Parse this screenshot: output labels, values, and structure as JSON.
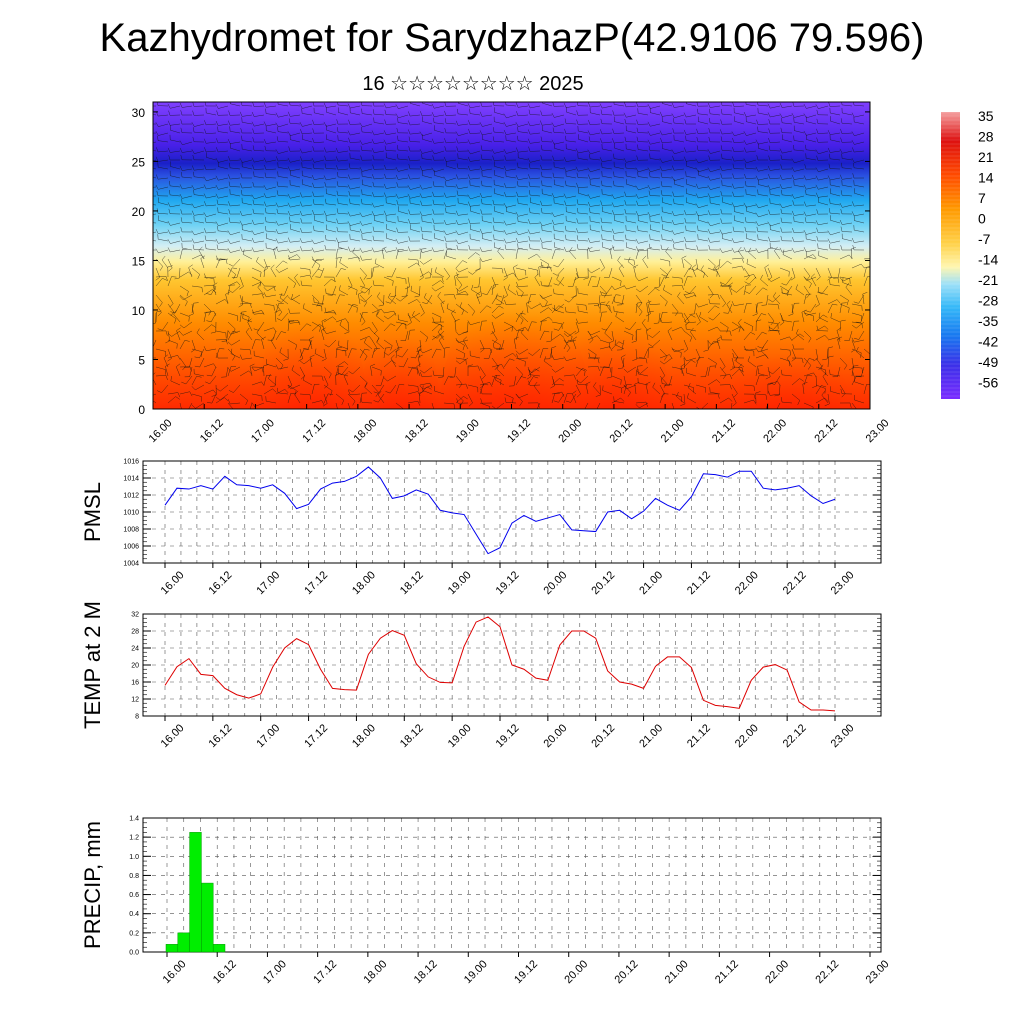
{
  "title": "Kazhydromet for SarydzhazP(42.9106 79.596)",
  "subtitle": "16 ☆☆☆☆☆☆☆☆ 2025",
  "chart_data": [
    {
      "type": "heatmap",
      "name": "cross-section",
      "yticks": [
        0,
        5,
        10,
        15,
        20,
        25,
        30
      ],
      "ylim": [
        0,
        31
      ],
      "xticks": [
        "16.00",
        "16.12",
        "17.00",
        "17.12",
        "18.00",
        "18.12",
        "19.00",
        "19.12",
        "20.00",
        "20.12",
        "21.00",
        "21.12",
        "22.00",
        "22.12",
        "23.00"
      ],
      "colorbar": {
        "labels": [
          "35",
          "28",
          "21",
          "14",
          "7",
          "0",
          "-7",
          "-14",
          "-21",
          "-28",
          "-35",
          "-42",
          "-49",
          "-56"
        ],
        "range": [
          -60,
          38
        ]
      }
    },
    {
      "type": "line",
      "ylabel": "PMSL",
      "ylim": [
        1004,
        1016
      ],
      "yticks": [
        "1016",
        "1014",
        "1012",
        "1010",
        "1008",
        "1006",
        "1004"
      ],
      "xticks": [
        "16.00",
        "16.12",
        "17.00",
        "17.12",
        "18.00",
        "18.12",
        "19.00",
        "19.12",
        "20.00",
        "20.12",
        "21.00",
        "21.12",
        "22.00",
        "22.12",
        "23.00"
      ],
      "color": "#0000ee",
      "values": [
        1010.8,
        1012.8,
        1012.7,
        1013.1,
        1012.7,
        1014.2,
        1013.2,
        1013.1,
        1012.8,
        1013.2,
        1012.2,
        1010.4,
        1010.9,
        1012.7,
        1013.4,
        1013.6,
        1014.2,
        1015.3,
        1014.0,
        1011.6,
        1011.9,
        1012.6,
        1012.1,
        1010.2,
        1009.9,
        1009.7,
        1007.4,
        1005.1,
        1005.8,
        1008.7,
        1009.6,
        1008.9,
        1009.3,
        1009.7,
        1007.9,
        1007.8,
        1007.7,
        1010.0,
        1010.2,
        1009.2,
        1010.1,
        1011.6,
        1010.8,
        1010.2,
        1011.8,
        1014.5,
        1014.4,
        1014.1,
        1014.8,
        1014.8,
        1012.8,
        1012.6,
        1012.8,
        1013.1,
        1011.9,
        1011.0,
        1011.5
      ]
    },
    {
      "type": "line",
      "ylabel": "TEMP at 2 M",
      "ylim": [
        8,
        32
      ],
      "yticks": [
        "32",
        "28",
        "24",
        "20",
        "16",
        "12",
        "8"
      ],
      "xticks": [
        "16.00",
        "16.12",
        "17.00",
        "17.12",
        "18.00",
        "18.12",
        "19.00",
        "19.12",
        "20.00",
        "20.12",
        "21.00",
        "21.12",
        "22.00",
        "22.12",
        "23.00"
      ],
      "color": "#dd0000",
      "values": [
        15.2,
        19.6,
        21.5,
        17.8,
        17.5,
        14.5,
        13.0,
        12.2,
        13.2,
        19.5,
        24.0,
        26.2,
        24.8,
        19.0,
        14.5,
        14.2,
        14.1,
        22.5,
        26.3,
        28.1,
        27.0,
        20.3,
        17.2,
        15.9,
        15.8,
        24.4,
        30.1,
        31.3,
        29.0,
        20.0,
        19.0,
        16.9,
        16.4,
        24.7,
        28.0,
        28.0,
        26.3,
        18.6,
        16.0,
        15.5,
        14.5,
        19.7,
        21.9,
        21.9,
        19.4,
        11.7,
        10.5,
        10.2,
        9.8,
        16.4,
        19.5,
        20.1,
        18.8,
        11.3,
        9.4,
        9.4,
        9.2
      ]
    },
    {
      "type": "bar",
      "ylabel": "PRECIP, mm",
      "ylim": [
        0,
        1.4
      ],
      "yticks": [
        "1.4",
        "1.2",
        "1.0",
        "0.8",
        "0.6",
        "0.4",
        "0.2",
        "0.0"
      ],
      "xticks": [
        "16.00",
        "16.12",
        "17.00",
        "17.12",
        "18.00",
        "18.12",
        "19.00",
        "19.12",
        "20.00",
        "20.12",
        "21.00",
        "21.12",
        "22.00",
        "22.12",
        "23.00"
      ],
      "color": "#00ee00",
      "values": [
        0.08,
        0.2,
        1.25,
        0.72,
        0.08
      ]
    }
  ]
}
